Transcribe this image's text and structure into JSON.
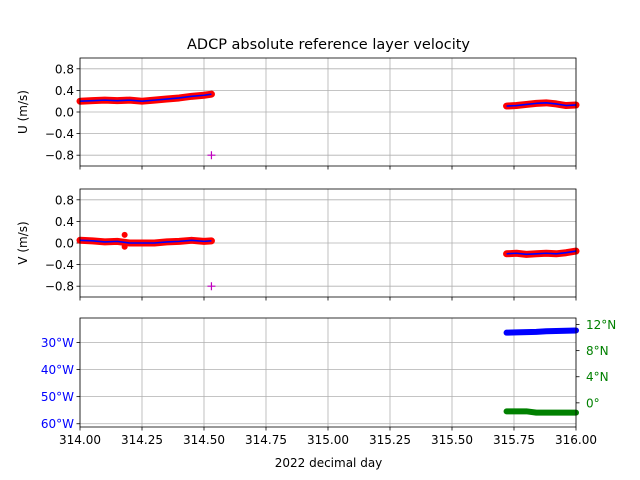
{
  "chart_data": {
    "title": "ADCP absolute reference layer velocity",
    "xlabel": "2022 decimal day",
    "xlim": [
      314.0,
      316.0
    ],
    "xticks": [
      314.0,
      314.25,
      314.5,
      314.75,
      315.0,
      315.25,
      315.5,
      315.75,
      316.0
    ],
    "xtick_labels": [
      "314.00",
      "314.25",
      "314.50",
      "314.75",
      "315.00",
      "315.25",
      "315.50",
      "315.75",
      "316.00"
    ],
    "grid": true,
    "panels": [
      {
        "type": "scatter",
        "ylabel": "U (m/s)",
        "ylim": [
          -1.0,
          1.0
        ],
        "yticks": [
          0.8,
          0.4,
          0.0,
          -0.4,
          -0.8
        ],
        "ytick_labels": [
          "0.8",
          "0.4",
          "0.0",
          "−0.4",
          "−0.8"
        ],
        "series": [
          {
            "style": "red-dots-blue-line",
            "segments": [
              {
                "x": [
                  314.0,
                  314.05,
                  314.1,
                  314.15,
                  314.2,
                  314.25,
                  314.3,
                  314.35,
                  314.4,
                  314.45,
                  314.5,
                  314.53
                ],
                "y": [
                  0.2,
                  0.21,
                  0.22,
                  0.21,
                  0.22,
                  0.2,
                  0.22,
                  0.24,
                  0.26,
                  0.29,
                  0.31,
                  0.33
                ]
              },
              {
                "x": [
                  315.72,
                  315.76,
                  315.8,
                  315.84,
                  315.88,
                  315.92,
                  315.96,
                  316.0
                ],
                "y": [
                  0.11,
                  0.12,
                  0.14,
                  0.16,
                  0.17,
                  0.15,
                  0.12,
                  0.13
                ]
              }
            ]
          }
        ],
        "markers": [
          {
            "x": 314.53,
            "y": -0.8,
            "style": "magenta-plus"
          }
        ]
      },
      {
        "type": "scatter",
        "ylabel": "V (m/s)",
        "ylim": [
          -1.0,
          1.0
        ],
        "yticks": [
          0.8,
          0.4,
          0.0,
          -0.4,
          -0.8
        ],
        "ytick_labels": [
          "0.8",
          "0.4",
          "0.0",
          "−0.4",
          "−0.8"
        ],
        "series": [
          {
            "style": "red-dots-blue-line",
            "segments": [
              {
                "x": [
                  314.0,
                  314.05,
                  314.1,
                  314.15,
                  314.2,
                  314.25,
                  314.3,
                  314.35,
                  314.4,
                  314.45,
                  314.5,
                  314.53
                ],
                "y": [
                  0.05,
                  0.04,
                  0.02,
                  0.03,
                  0.0,
                  0.0,
                  0.0,
                  0.02,
                  0.03,
                  0.05,
                  0.03,
                  0.04
                ]
              },
              {
                "x": [
                  315.72,
                  315.76,
                  315.8,
                  315.84,
                  315.88,
                  315.92,
                  315.96,
                  316.0
                ],
                "y": [
                  -0.2,
                  -0.19,
                  -0.21,
                  -0.2,
                  -0.19,
                  -0.2,
                  -0.18,
                  -0.15
                ]
              }
            ]
          }
        ],
        "outliers": [
          {
            "x": 314.18,
            "y": 0.15
          },
          {
            "x": 314.18,
            "y": -0.07
          }
        ],
        "markers": [
          {
            "x": 314.53,
            "y": -0.8,
            "style": "magenta-plus"
          }
        ]
      },
      {
        "type": "scatter",
        "left_axis": {
          "quantity": "longitude",
          "color": "#0000ff",
          "ylim": [
            -61.2,
            -21.0
          ],
          "yticks": [
            -30,
            -40,
            -50,
            -60
          ],
          "ytick_labels": [
            "30°W",
            "40°W",
            "50°W",
            "60°W"
          ]
        },
        "right_axis": {
          "quantity": "latitude",
          "color": "#008000",
          "ylim": [
            -3.7,
            13.0
          ],
          "yticks": [
            12,
            8,
            4,
            0
          ],
          "ytick_labels": [
            "12°N",
            "8°N",
            "4°N",
            "0°"
          ]
        },
        "series": [
          {
            "axis": "left",
            "color": "#0000ff",
            "x": [
              315.72,
              315.76,
              315.8,
              315.84,
              315.88,
              315.92,
              315.96,
              316.0
            ],
            "y": [
              -26.4,
              -26.3,
              -26.2,
              -26.1,
              -25.9,
              -25.8,
              -25.7,
              -25.6
            ]
          },
          {
            "axis": "right",
            "color": "#008000",
            "x": [
              315.72,
              315.76,
              315.8,
              315.84,
              315.88,
              315.92,
              315.96,
              316.0
            ],
            "y": [
              -1.3,
              -1.3,
              -1.3,
              -1.5,
              -1.5,
              -1.5,
              -1.5,
              -1.5
            ]
          }
        ]
      }
    ]
  }
}
